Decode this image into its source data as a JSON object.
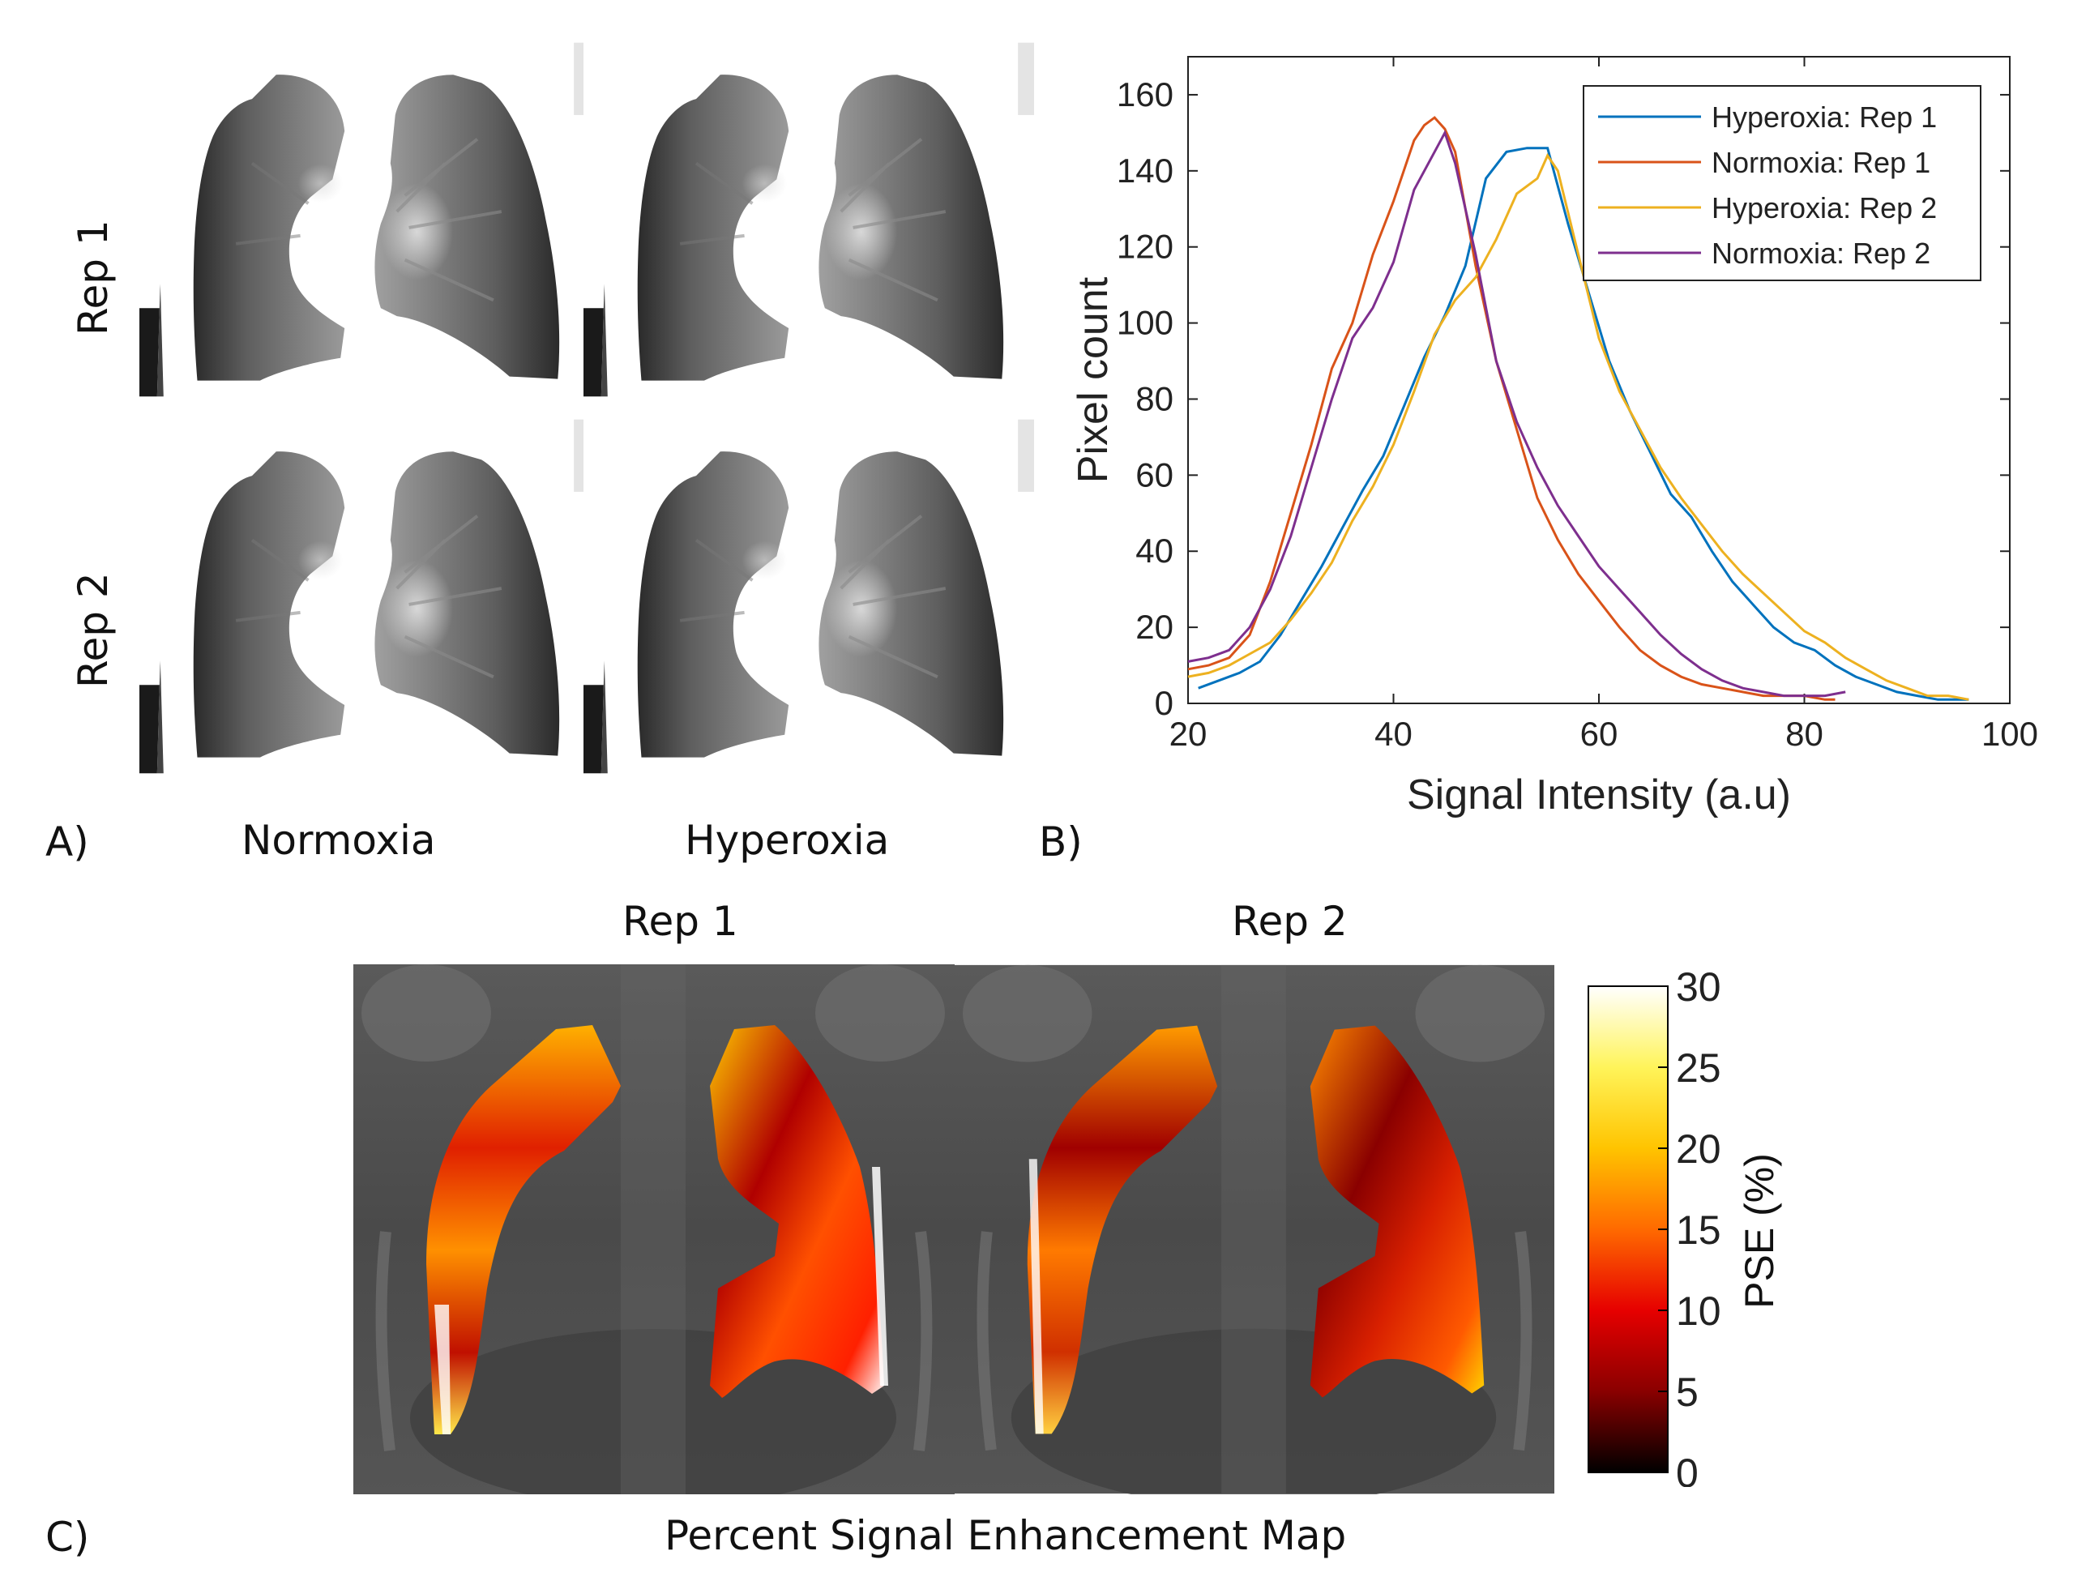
{
  "panel_a": {
    "letter": "A)",
    "columns": [
      "Normoxia",
      "Hyperoxia"
    ],
    "rows": [
      "Rep 1",
      "Rep 2"
    ]
  },
  "panel_b": {
    "letter": "B)"
  },
  "panel_c": {
    "letter": "C)",
    "titles": [
      "Rep 1",
      "Rep 2"
    ],
    "caption": "Percent Signal Enhancement Map",
    "colorbar": {
      "label": "PSE (%)",
      "ticks": [
        "30",
        "25",
        "20",
        "15",
        "10",
        "5",
        "0"
      ],
      "colors": [
        "#000000",
        "#8a0000",
        "#e60000",
        "#ff6a00",
        "#ffc400",
        "#fff45a",
        "#ffffff"
      ]
    }
  },
  "chart_data": {
    "type": "line",
    "title": "",
    "xlabel": "Signal Intensity (a.u)",
    "ylabel": "Pixel count",
    "xlim": [
      20,
      100
    ],
    "ylim": [
      0,
      170
    ],
    "xticks": [
      20,
      40,
      60,
      80,
      100
    ],
    "yticks": [
      0,
      20,
      40,
      60,
      80,
      100,
      120,
      140,
      160
    ],
    "legend_position": "top-right",
    "series": [
      {
        "name": "Hyperoxia: Rep 1",
        "color": "#0072BD",
        "x": [
          21,
          23,
          25,
          27,
          29,
          31,
          33,
          35,
          37,
          39,
          41,
          43,
          45,
          47,
          49,
          51,
          53,
          55,
          57,
          59,
          61,
          63,
          65,
          67,
          69,
          71,
          73,
          75,
          77,
          79,
          81,
          83,
          85,
          87,
          89,
          91,
          93,
          95,
          96
        ],
        "y": [
          4,
          6,
          8,
          11,
          18,
          27,
          36,
          46,
          56,
          65,
          78,
          91,
          102,
          115,
          138,
          145,
          146,
          146,
          126,
          108,
          90,
          77,
          66,
          55,
          49,
          40,
          32,
          26,
          20,
          16,
          14,
          10,
          7,
          5,
          3,
          2,
          1,
          1,
          1
        ]
      },
      {
        "name": "Normoxia: Rep 1",
        "color": "#D95319",
        "x": [
          20,
          22,
          24,
          26,
          28,
          30,
          32,
          34,
          36,
          38,
          40,
          42,
          43,
          44,
          45,
          46,
          48,
          50,
          52,
          54,
          56,
          58,
          60,
          62,
          64,
          66,
          68,
          70,
          72,
          74,
          76,
          78,
          80,
          82,
          83
        ],
        "y": [
          9,
          10,
          12,
          18,
          32,
          50,
          68,
          88,
          100,
          118,
          132,
          148,
          152,
          154,
          151,
          145,
          115,
          90,
          72,
          54,
          43,
          34,
          27,
          20,
          14,
          10,
          7,
          5,
          4,
          3,
          2,
          2,
          2,
          1,
          1
        ]
      },
      {
        "name": "Hyperoxia: Rep 2",
        "color": "#EDB120",
        "x": [
          20,
          22,
          24,
          26,
          28,
          30,
          32,
          34,
          36,
          38,
          40,
          42,
          44,
          46,
          48,
          50,
          52,
          54,
          55,
          56,
          58,
          60,
          62,
          64,
          66,
          68,
          70,
          72,
          74,
          76,
          78,
          80,
          82,
          84,
          86,
          88,
          90,
          92,
          94,
          96
        ],
        "y": [
          7,
          8,
          10,
          13,
          16,
          22,
          29,
          37,
          48,
          57,
          68,
          82,
          97,
          106,
          112,
          122,
          134,
          138,
          144,
          140,
          118,
          96,
          82,
          72,
          62,
          54,
          47,
          40,
          34,
          29,
          24,
          19,
          16,
          12,
          9,
          6,
          4,
          2,
          2,
          1
        ]
      },
      {
        "name": "Normoxia: Rep 2",
        "color": "#7E2F8E",
        "x": [
          20,
          22,
          24,
          26,
          28,
          30,
          32,
          34,
          36,
          38,
          40,
          42,
          44,
          45,
          46,
          48,
          50,
          52,
          54,
          56,
          58,
          60,
          62,
          64,
          66,
          68,
          70,
          72,
          74,
          76,
          78,
          80,
          82,
          84
        ],
        "y": [
          11,
          12,
          14,
          20,
          30,
          44,
          62,
          80,
          96,
          104,
          116,
          135,
          145,
          150,
          142,
          118,
          90,
          74,
          62,
          52,
          44,
          36,
          30,
          24,
          18,
          13,
          9,
          6,
          4,
          3,
          2,
          2,
          2,
          3
        ]
      }
    ]
  }
}
